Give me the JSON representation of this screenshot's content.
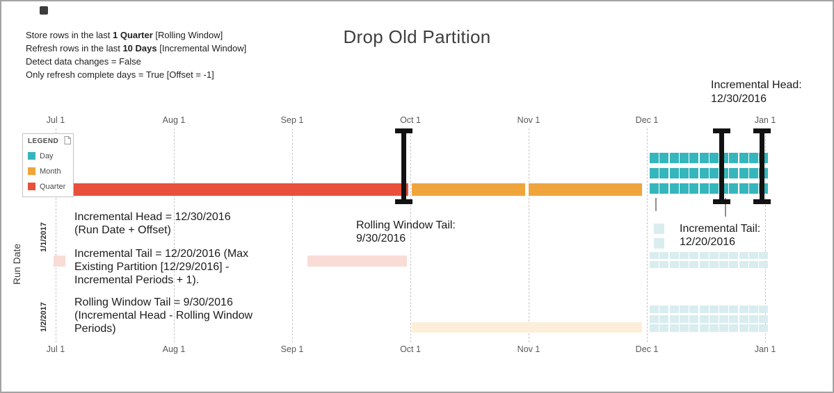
{
  "title": "Drop Old Partition",
  "settings": [
    {
      "pre": "Store rows in the last ",
      "bold": "1 Quarter",
      "post": " [Rolling Window]"
    },
    {
      "pre": "Refresh rows in the last ",
      "bold": "10 Days",
      "post": " [Incremental Window]"
    },
    {
      "pre": "Detect data changes = False",
      "bold": "",
      "post": ""
    },
    {
      "pre": "Only refresh complete days = True [Offset = -1]",
      "bold": "",
      "post": ""
    }
  ],
  "legend": {
    "title": "LEGEND",
    "items": [
      {
        "label": "Day",
        "color": "#35b6bc"
      },
      {
        "label": "Month",
        "color": "#f0a43c"
      },
      {
        "label": "Quarter",
        "color": "#e8503b"
      }
    ]
  },
  "axis": {
    "months": [
      "Jul 1",
      "Aug 1",
      "Sep 1",
      "Oct 1",
      "Nov 1",
      "Dec 1",
      "Jan 1"
    ],
    "left_label": "Run Date",
    "run_rows": [
      "1/1/2017",
      "1/2/2017"
    ]
  },
  "annotations": {
    "incremental_head_label": "Incremental Head:\n12/30/2016",
    "incremental_head_note": "Incremental Head = 12/30/2016\n(Run Date + Offset)",
    "rolling_window_tail_label": "Rolling Window Tail:\n9/30/2016",
    "incremental_tail_label": "Incremental Tail:\n12/20/2016",
    "incremental_tail_note": "Incremental Tail = 12/20/2016 (Max\nExisting Partition [12/29/2016] -\nIncremental Periods + 1).",
    "rolling_window_note": "Rolling Window Tail = 9/30/2016\n(Incremental Head - Rolling Window\nPeriods)"
  },
  "timeline": {
    "markers": [
      {
        "name": "rolling-window-tail",
        "date": "9/30/2016"
      },
      {
        "name": "incremental-tail",
        "date": "12/20/2016"
      },
      {
        "name": "incremental-head",
        "date": "12/30/2016"
      }
    ],
    "current": {
      "quarter_bar": {
        "type": "Quarter",
        "span": "Jul 1 - Oct 1",
        "color": "#e8503b"
      },
      "month_bars": [
        {
          "type": "Month",
          "span": "Oct 1 - Nov 1",
          "color": "#f0a43c"
        },
        {
          "type": "Month",
          "span": "Nov 1 - Dec 1",
          "color": "#f0a43c"
        }
      ],
      "day_rows": [
        12,
        12,
        12
      ],
      "day_color": "#35b6bc"
    },
    "run_1": {
      "label": "1/1/2017",
      "faded_quarter_color": "#f9dcd6",
      "faded_day_color": "#d9edef",
      "day_rows": [
        12,
        12
      ],
      "mini_day_rows": [
        1,
        1
      ]
    },
    "run_2": {
      "label": "1/2/2017",
      "faded_month_color": "#fdeeda",
      "faded_day_color": "#d9edef",
      "day_rows": [
        12,
        12,
        12
      ]
    }
  }
}
